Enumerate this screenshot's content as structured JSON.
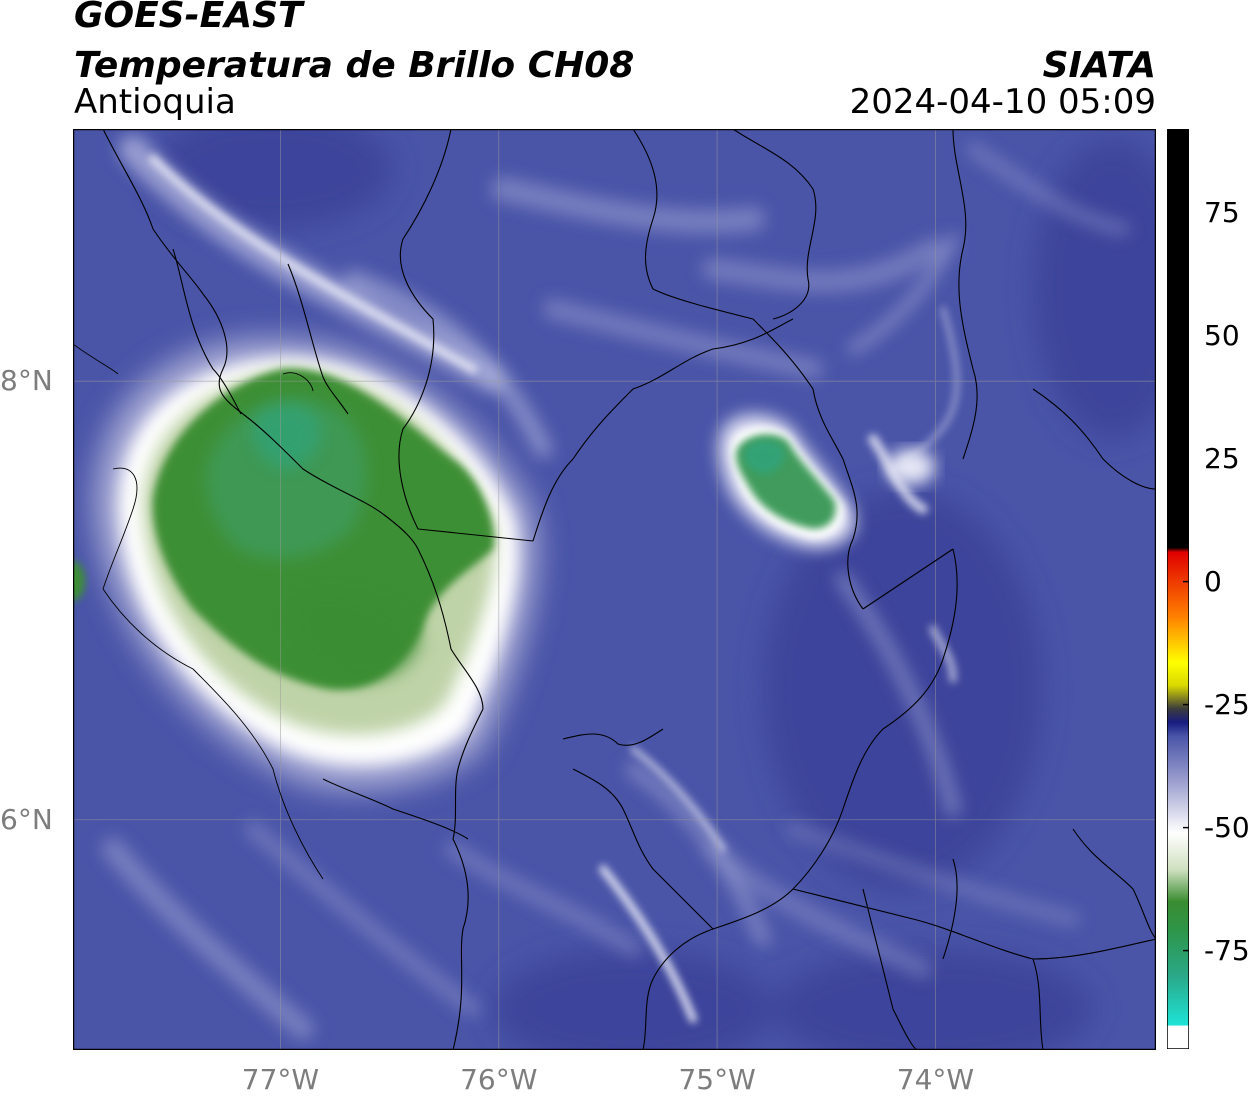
{
  "header": {
    "satellite": "GOES-EAST",
    "product": "Temperatura de Brillo CH08",
    "region": "Antioquia",
    "organization": "SIATA",
    "datetime": "2024-04-10 05:09"
  },
  "map": {
    "lon_range": [
      -77.95,
      -72.99
    ],
    "lat_range": [
      4.95,
      9.15
    ],
    "lon_ticks": [
      {
        "value": -77,
        "label": "77°W"
      },
      {
        "value": -76,
        "label": "76°W"
      },
      {
        "value": -75,
        "label": "75°W"
      },
      {
        "value": -74,
        "label": "74°W"
      }
    ],
    "lat_ticks": [
      {
        "value": 8,
        "label": "8°N"
      },
      {
        "value": 6,
        "label": "6°N"
      }
    ],
    "grid": true,
    "background_color": "#4a55a8",
    "features": [
      {
        "name": "deep-convection-cell-west",
        "lon": -76.8,
        "lat": 7.2,
        "min_temp": -80
      },
      {
        "name": "convection-cell-east",
        "lon": -74.7,
        "lat": 7.6,
        "min_temp": -75
      }
    ]
  },
  "colorbar": {
    "range": [
      -95,
      92
    ],
    "ticks": [
      {
        "value": 75,
        "label": "75"
      },
      {
        "value": 50,
        "label": "50"
      },
      {
        "value": 25,
        "label": "25"
      },
      {
        "value": 0,
        "label": "0"
      },
      {
        "value": -25,
        "label": "-25"
      },
      {
        "value": -50,
        "label": "-50"
      },
      {
        "value": -75,
        "label": "-75"
      }
    ]
  },
  "colors": {
    "cold_cyan": "#1ee3d6",
    "teal": "#2aa888",
    "green": "#3a8c30",
    "white": "#ffffff",
    "lavender": "#9da0cf",
    "blue": "#4a55a8",
    "navy": "#171c80",
    "black": "#000000",
    "red": "#e00000",
    "orange": "#ff8000",
    "yellow": "#ffff00"
  }
}
